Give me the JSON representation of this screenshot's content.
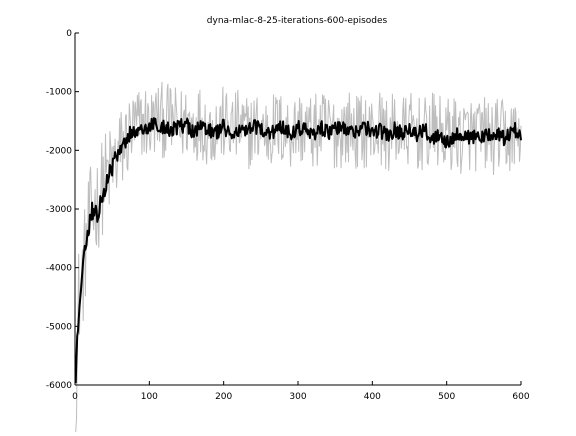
{
  "chart_data": {
    "type": "line",
    "title": "dyna-mlac-8-25-iterations-600-episodes",
    "xlabel": "",
    "ylabel": "",
    "xlim": [
      0,
      600
    ],
    "ylim": [
      -6000,
      0
    ],
    "x_ticks": [
      0,
      100,
      200,
      300,
      400,
      500,
      600
    ],
    "y_ticks": [
      0,
      -1000,
      -2000,
      -3000,
      -4000,
      -5000,
      -6000
    ],
    "x_tick_labels": [
      "0",
      "100",
      "200",
      "300",
      "400",
      "500",
      "600"
    ],
    "y_tick_labels": [
      "0",
      "-1000",
      "-2000",
      "-3000",
      "-4000",
      "-5000",
      "-6000"
    ],
    "grid": false,
    "legend": "none",
    "series": [
      {
        "role": "per-episode return (noisy)",
        "color": "#bdbdbd",
        "x": [
          1,
          5,
          10,
          15,
          20,
          25,
          30,
          35,
          40,
          45,
          50,
          55,
          60,
          65,
          70,
          75,
          80,
          85,
          90,
          95,
          100,
          110,
          120,
          130,
          140,
          150,
          160,
          170,
          180,
          190,
          200,
          210,
          220,
          230,
          240,
          250,
          260,
          270,
          280,
          290,
          300,
          310,
          320,
          330,
          340,
          350,
          360,
          370,
          380,
          390,
          400,
          410,
          420,
          430,
          440,
          450,
          460,
          470,
          480,
          490,
          500,
          510,
          520,
          530,
          540,
          550,
          560,
          570,
          580,
          590,
          600
        ],
        "y": [
          -6700,
          -4500,
          -4200,
          -3600,
          -3200,
          -3000,
          -2900,
          -2700,
          -2500,
          -2400,
          -2300,
          -2200,
          -2050,
          -1950,
          -1800,
          -1700,
          -1650,
          -1600,
          -1550,
          -1500,
          -1600,
          -1450,
          -1500,
          -1500,
          -1600,
          -1500,
          -1550,
          -1500,
          -1650,
          -1600,
          -1550,
          -1650,
          -1600,
          -1700,
          -1650,
          -1600,
          -1700,
          -1600,
          -1650,
          -1700,
          -1600,
          -1650,
          -1700,
          -1650,
          -1600,
          -1700,
          -1650,
          -1600,
          -1700,
          -1650,
          -1700,
          -1600,
          -1750,
          -1650,
          -1700,
          -1650,
          -1700,
          -1750,
          -1650,
          -1700,
          -1750,
          -1700,
          -1800,
          -1700,
          -1750,
          -1700,
          -1800,
          -1750,
          -1800,
          -1750,
          -1700
        ],
        "spread": [
          300,
          900,
          900,
          900,
          900,
          850,
          850,
          850,
          850,
          800,
          800,
          800,
          800,
          750,
          750,
          700,
          700,
          700,
          650,
          650,
          650,
          650,
          650,
          650,
          650,
          650,
          650,
          650,
          650,
          650,
          650,
          650,
          650,
          650,
          650,
          650,
          650,
          650,
          650,
          650,
          650,
          650,
          650,
          650,
          650,
          650,
          650,
          650,
          650,
          650,
          650,
          650,
          650,
          650,
          650,
          650,
          650,
          650,
          650,
          650,
          650,
          650,
          650,
          650,
          650,
          650,
          650,
          650,
          650,
          650,
          650
        ]
      },
      {
        "role": "smoothed return",
        "color": "#000000",
        "x": [
          1,
          3,
          5,
          8,
          10,
          13,
          15,
          18,
          20,
          23,
          25,
          28,
          30,
          35,
          40,
          45,
          50,
          55,
          60,
          65,
          70,
          75,
          80,
          90,
          100,
          110,
          120,
          130,
          140,
          150,
          160,
          170,
          180,
          190,
          200,
          210,
          220,
          230,
          240,
          250,
          260,
          270,
          280,
          290,
          300,
          310,
          320,
          330,
          340,
          350,
          360,
          370,
          380,
          390,
          400,
          410,
          420,
          430,
          440,
          450,
          460,
          470,
          480,
          490,
          500,
          510,
          520,
          530,
          540,
          550,
          560,
          570,
          580,
          590,
          600
        ],
        "y": [
          -6000,
          -5200,
          -4800,
          -4500,
          -4000,
          -3700,
          -3600,
          -3400,
          -3200,
          -3000,
          -3100,
          -3000,
          -3200,
          -2800,
          -2700,
          -2400,
          -2300,
          -2100,
          -2000,
          -1950,
          -1800,
          -1700,
          -1650,
          -1700,
          -1600,
          -1550,
          -1600,
          -1650,
          -1600,
          -1550,
          -1700,
          -1600,
          -1650,
          -1700,
          -1600,
          -1750,
          -1650,
          -1700,
          -1600,
          -1650,
          -1700,
          -1650,
          -1600,
          -1700,
          -1600,
          -1650,
          -1750,
          -1600,
          -1700,
          -1650,
          -1600,
          -1700,
          -1650,
          -1600,
          -1700,
          -1650,
          -1750,
          -1650,
          -1700,
          -1600,
          -1750,
          -1650,
          -1800,
          -1700,
          -1850,
          -1750,
          -1700,
          -1800,
          -1750,
          -1800,
          -1700,
          -1750,
          -1800,
          -1650,
          -1700
        ],
        "jitter": 130
      }
    ]
  }
}
